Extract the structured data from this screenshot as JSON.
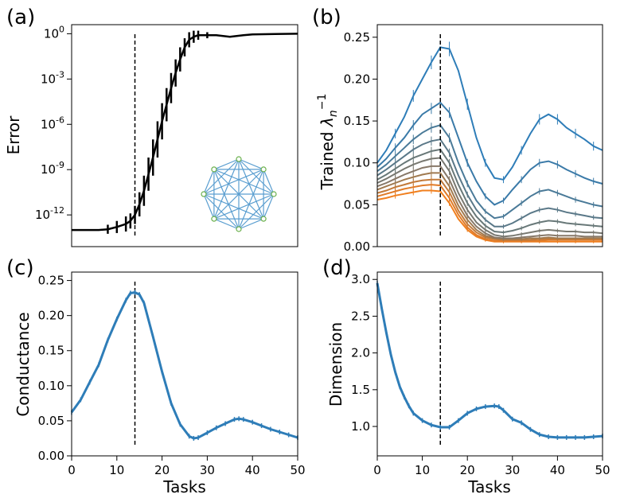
{
  "chart_data": [
    {
      "id": "a",
      "type": "line",
      "panel_label": "(a)",
      "xlabel": "",
      "ylabel": "Error",
      "yscale": "log",
      "xlim": [
        0,
        50
      ],
      "ylim_log10": [
        -14.1,
        0.6
      ],
      "y_ticks": [
        {
          "base": "10",
          "exp": "0",
          "log": 0
        },
        {
          "base": "10",
          "exp": "-3",
          "log": -3
        },
        {
          "base": "10",
          "exp": "-6",
          "log": -6
        },
        {
          "base": "10",
          "exp": "-9",
          "log": -9
        },
        {
          "base": "10",
          "exp": "-12",
          "log": -12
        }
      ],
      "vline_x": 14,
      "series": [
        {
          "name": "error",
          "color": "#000000",
          "x": [
            0,
            2,
            4,
            6,
            8,
            10,
            12,
            13,
            14,
            15,
            16,
            17,
            18,
            19,
            20,
            21,
            22,
            23,
            24,
            25,
            26,
            27,
            28,
            30,
            32,
            35,
            38,
            40,
            45,
            50
          ],
          "log10_y": [
            -13.0,
            -13.0,
            -13.0,
            -13.0,
            -12.95,
            -12.8,
            -12.6,
            -12.4,
            -12.0,
            -11.3,
            -10.4,
            -9.3,
            -8.2,
            -7.0,
            -5.8,
            -4.7,
            -3.6,
            -2.6,
            -1.7,
            -0.9,
            -0.4,
            -0.2,
            -0.1,
            -0.1,
            -0.1,
            -0.2,
            -0.1,
            -0.05,
            -0.02,
            0.0
          ],
          "log10_err": [
            0,
            0,
            0,
            0,
            0.3,
            0.4,
            0.5,
            0.5,
            0.6,
            0.8,
            1.0,
            1.1,
            1.2,
            1.2,
            1.2,
            1.1,
            1.0,
            0.9,
            0.8,
            0.6,
            0.5,
            0.4,
            0.3,
            0.2,
            0,
            0,
            0,
            0,
            0,
            0
          ]
        }
      ],
      "inset": "complete-graph-8-nodes"
    },
    {
      "id": "b",
      "type": "line",
      "panel_label": "(b)",
      "ylabel_prefix": "Trained ",
      "ylabel_symbol": "λ",
      "ylabel_sub": "n",
      "ylabel_sup": "−1",
      "xlim": [
        0,
        50
      ],
      "ylim": [
        0,
        0.265
      ],
      "y_ticks": [
        "0.00",
        "0.05",
        "0.10",
        "0.15",
        "0.20",
        "0.25"
      ],
      "vline_x": 14,
      "x": [
        0,
        2,
        4,
        6,
        8,
        10,
        12,
        14,
        16,
        18,
        20,
        22,
        24,
        26,
        28,
        30,
        32,
        34,
        36,
        38,
        40,
        42,
        44,
        46,
        48,
        50
      ],
      "series": [
        {
          "name": "n=1",
          "color": "#2e7db8",
          "values": [
            0.1,
            0.115,
            0.135,
            0.155,
            0.18,
            0.2,
            0.22,
            0.238,
            0.236,
            0.21,
            0.17,
            0.13,
            0.1,
            0.082,
            0.08,
            0.095,
            0.115,
            0.135,
            0.152,
            0.158,
            0.152,
            0.142,
            0.135,
            0.128,
            0.12,
            0.115
          ]
        },
        {
          "name": "n=2",
          "color": "#3a7aa8",
          "values": [
            0.095,
            0.105,
            0.118,
            0.13,
            0.145,
            0.158,
            0.165,
            0.172,
            0.16,
            0.13,
            0.1,
            0.078,
            0.06,
            0.05,
            0.055,
            0.068,
            0.08,
            0.092,
            0.1,
            0.102,
            0.098,
            0.092,
            0.087,
            0.082,
            0.078,
            0.075
          ]
        },
        {
          "name": "n=3",
          "color": "#4a7a98",
          "values": [
            0.09,
            0.098,
            0.108,
            0.118,
            0.128,
            0.136,
            0.142,
            0.145,
            0.13,
            0.1,
            0.075,
            0.055,
            0.042,
            0.034,
            0.036,
            0.044,
            0.052,
            0.06,
            0.066,
            0.068,
            0.064,
            0.06,
            0.056,
            0.053,
            0.05,
            0.048
          ]
        },
        {
          "name": "n=4",
          "color": "#5a7888",
          "values": [
            0.085,
            0.092,
            0.1,
            0.108,
            0.116,
            0.122,
            0.126,
            0.128,
            0.112,
            0.085,
            0.062,
            0.044,
            0.032,
            0.024,
            0.024,
            0.028,
            0.034,
            0.04,
            0.044,
            0.046,
            0.044,
            0.041,
            0.039,
            0.037,
            0.035,
            0.034
          ]
        },
        {
          "name": "n=5",
          "color": "#687878",
          "values": [
            0.08,
            0.086,
            0.093,
            0.1,
            0.106,
            0.11,
            0.114,
            0.116,
            0.1,
            0.074,
            0.052,
            0.036,
            0.025,
            0.018,
            0.017,
            0.019,
            0.022,
            0.026,
            0.029,
            0.031,
            0.03,
            0.028,
            0.027,
            0.026,
            0.025,
            0.024
          ]
        },
        {
          "name": "n=6",
          "color": "#787870",
          "values": [
            0.076,
            0.081,
            0.087,
            0.093,
            0.098,
            0.102,
            0.105,
            0.106,
            0.09,
            0.064,
            0.044,
            0.029,
            0.02,
            0.014,
            0.012,
            0.013,
            0.015,
            0.017,
            0.019,
            0.02,
            0.019,
            0.018,
            0.018,
            0.017,
            0.017,
            0.016
          ]
        },
        {
          "name": "n=7",
          "color": "#877868",
          "values": [
            0.072,
            0.076,
            0.081,
            0.086,
            0.09,
            0.094,
            0.096,
            0.096,
            0.08,
            0.056,
            0.037,
            0.024,
            0.016,
            0.011,
            0.01,
            0.01,
            0.011,
            0.012,
            0.013,
            0.014,
            0.013,
            0.013,
            0.013,
            0.012,
            0.012,
            0.012
          ]
        },
        {
          "name": "n=8",
          "color": "#a07a50",
          "values": [
            0.068,
            0.072,
            0.076,
            0.08,
            0.083,
            0.086,
            0.088,
            0.088,
            0.072,
            0.049,
            0.032,
            0.02,
            0.013,
            0.01,
            0.009,
            0.009,
            0.009,
            0.01,
            0.01,
            0.011,
            0.01,
            0.01,
            0.01,
            0.01,
            0.01,
            0.01
          ]
        },
        {
          "name": "n=9",
          "color": "#c27a3a",
          "values": [
            0.064,
            0.067,
            0.071,
            0.074,
            0.077,
            0.079,
            0.08,
            0.08,
            0.065,
            0.043,
            0.027,
            0.017,
            0.011,
            0.009,
            0.008,
            0.008,
            0.008,
            0.008,
            0.009,
            0.009,
            0.009,
            0.009,
            0.009,
            0.009,
            0.009,
            0.009
          ]
        },
        {
          "name": "n=10",
          "color": "#e07b28",
          "values": [
            0.06,
            0.063,
            0.066,
            0.069,
            0.071,
            0.073,
            0.074,
            0.073,
            0.058,
            0.038,
            0.023,
            0.014,
            0.009,
            0.007,
            0.007,
            0.007,
            0.007,
            0.007,
            0.007,
            0.008,
            0.008,
            0.008,
            0.008,
            0.008,
            0.008,
            0.008
          ]
        },
        {
          "name": "n=11",
          "color": "#f07f1e",
          "values": [
            0.056,
            0.058,
            0.061,
            0.063,
            0.065,
            0.067,
            0.067,
            0.066,
            0.052,
            0.033,
            0.02,
            0.012,
            0.008,
            0.006,
            0.006,
            0.006,
            0.006,
            0.006,
            0.006,
            0.006,
            0.006,
            0.006,
            0.006,
            0.006,
            0.006,
            0.006
          ]
        }
      ]
    },
    {
      "id": "c",
      "type": "line",
      "panel_label": "(c)",
      "xlabel": "Tasks",
      "ylabel": "Conductance",
      "xlim": [
        0,
        50
      ],
      "ylim": [
        0,
        0.262
      ],
      "x_ticks": [
        "0",
        "10",
        "20",
        "30",
        "40",
        "50"
      ],
      "y_ticks": [
        "0.00",
        "0.05",
        "0.10",
        "0.15",
        "0.20",
        "0.25"
      ],
      "vline_x": 14,
      "series": [
        {
          "name": "conductance",
          "color": "#2e7db8",
          "x": [
            0,
            2,
            4,
            6,
            8,
            10,
            12,
            13,
            14,
            15,
            16,
            18,
            20,
            22,
            24,
            26,
            27,
            28,
            30,
            32,
            34,
            36,
            37,
            38,
            40,
            42,
            44,
            46,
            48,
            50
          ],
          "values": [
            0.062,
            0.08,
            0.105,
            0.13,
            0.165,
            0.195,
            0.222,
            0.232,
            0.233,
            0.23,
            0.218,
            0.17,
            0.12,
            0.075,
            0.045,
            0.028,
            0.025,
            0.026,
            0.033,
            0.04,
            0.046,
            0.052,
            0.053,
            0.052,
            0.048,
            0.043,
            0.038,
            0.034,
            0.03,
            0.026
          ]
        }
      ]
    },
    {
      "id": "d",
      "type": "line",
      "panel_label": "(d)",
      "xlabel": "Tasks",
      "ylabel": "Dimension",
      "xlim": [
        0,
        50
      ],
      "ylim": [
        0.6,
        3.1
      ],
      "x_ticks": [
        "0",
        "10",
        "20",
        "30",
        "40",
        "50"
      ],
      "y_ticks": [
        "1.0",
        "1.5",
        "2.0",
        "2.5",
        "3.0"
      ],
      "vline_x": 14,
      "series": [
        {
          "name": "dimension",
          "color": "#2e7db8",
          "x": [
            0,
            1,
            2,
            3,
            4,
            5,
            6,
            7,
            8,
            10,
            12,
            14,
            16,
            18,
            20,
            22,
            24,
            26,
            27,
            28,
            30,
            32,
            34,
            36,
            38,
            40,
            42,
            44,
            46,
            48,
            50
          ],
          "values": [
            2.95,
            2.6,
            2.28,
            1.98,
            1.74,
            1.54,
            1.4,
            1.28,
            1.18,
            1.08,
            1.02,
            0.99,
            0.99,
            1.08,
            1.18,
            1.24,
            1.27,
            1.28,
            1.27,
            1.22,
            1.1,
            1.05,
            0.96,
            0.89,
            0.86,
            0.85,
            0.85,
            0.85,
            0.85,
            0.86,
            0.87
          ]
        }
      ]
    }
  ]
}
